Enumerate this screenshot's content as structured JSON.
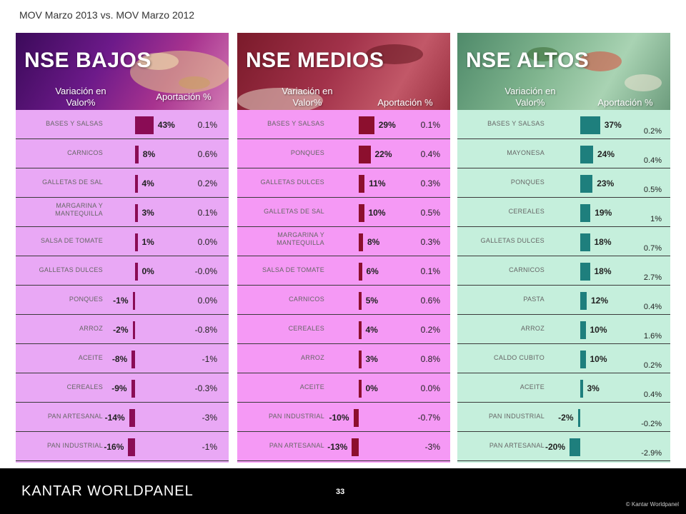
{
  "subtitle": "MOV Marzo 2013  vs. MOV Marzo 2012",
  "colors": {
    "bajos_bg": "#e9a8f5",
    "medios_bg": "#f599f5",
    "altos_bg": "#c5efdc",
    "bar_bajos": "#8a0c55",
    "bar_medios": "#8c0f2e",
    "bar_altos": "#1e7f7d"
  },
  "panels": [
    {
      "title": "NSE BAJOS",
      "col_variacion": "Variación en Valor%",
      "col_aportacion": "Aportación %",
      "rows": [
        {
          "cat": "BASES Y SALSAS",
          "var": 43,
          "var_label": "43%",
          "apo": "0.1%"
        },
        {
          "cat": "CARNICOS",
          "var": 8,
          "var_label": "8%",
          "apo": "0.6%"
        },
        {
          "cat": "GALLETAS DE SAL",
          "var": 4,
          "var_label": "4%",
          "apo": "0.2%"
        },
        {
          "cat": "MARGARINA Y MANTEQUILLA",
          "var": 3,
          "var_label": "3%",
          "apo": "0.1%"
        },
        {
          "cat": "SALSA DE TOMATE",
          "var": 1,
          "var_label": "1%",
          "apo": "0.0%"
        },
        {
          "cat": "GALLETAS DULCES",
          "var": 0,
          "var_label": "0%",
          "apo": "-0.0%"
        },
        {
          "cat": "PONQUES",
          "var": -1,
          "var_label": "-1%",
          "apo": "0.0%"
        },
        {
          "cat": "ARROZ",
          "var": -2,
          "var_label": "-2%",
          "apo": "-0.8%"
        },
        {
          "cat": "ACEITE",
          "var": -8,
          "var_label": "-8%",
          "apo": "-1%"
        },
        {
          "cat": "CEREALES",
          "var": -9,
          "var_label": "-9%",
          "apo": "-0.3%"
        },
        {
          "cat": "PAN ARTESANAL",
          "var": -14,
          "var_label": "-14%",
          "apo": "-3%"
        },
        {
          "cat": "PAN INDUSTRIAL",
          "var": -16,
          "var_label": "-16%",
          "apo": "-1%"
        }
      ]
    },
    {
      "title": "NSE MEDIOS",
      "col_variacion": "Variación en Valor%",
      "col_aportacion": "Aportación %",
      "rows": [
        {
          "cat": "BASES Y SALSAS",
          "var": 29,
          "var_label": "29%",
          "apo": "0.1%"
        },
        {
          "cat": "PONQUES",
          "var": 22,
          "var_label": "22%",
          "apo": "0.4%"
        },
        {
          "cat": "GALLETAS DULCES",
          "var": 11,
          "var_label": "11%",
          "apo": "0.3%"
        },
        {
          "cat": "GALLETAS DE SAL",
          "var": 10,
          "var_label": "10%",
          "apo": "0.5%"
        },
        {
          "cat": "MARGARINA Y MANTEQUILLA",
          "var": 8,
          "var_label": "8%",
          "apo": "0.3%"
        },
        {
          "cat": "SALSA DE TOMATE",
          "var": 6,
          "var_label": "6%",
          "apo": "0.1%"
        },
        {
          "cat": "CARNICOS",
          "var": 5,
          "var_label": "5%",
          "apo": "0.6%"
        },
        {
          "cat": "CEREALES",
          "var": 4,
          "var_label": "4%",
          "apo": "0.2%"
        },
        {
          "cat": "ARROZ",
          "var": 3,
          "var_label": "3%",
          "apo": "0.8%"
        },
        {
          "cat": "ACEITE",
          "var": 0,
          "var_label": "0%",
          "apo": "0.0%"
        },
        {
          "cat": "PAN INDUSTRIAL",
          "var": -10,
          "var_label": "-10%",
          "apo": "-0.7%"
        },
        {
          "cat": "PAN ARTESANAL",
          "var": -13,
          "var_label": "-13%",
          "apo": "-3%"
        }
      ]
    },
    {
      "title": "NSE ALTOS",
      "col_variacion": "Variación en Valor%",
      "col_aportacion": "Aportación %",
      "rows": [
        {
          "cat": "BASES Y SALSAS",
          "var": 37,
          "var_label": "37%",
          "apo": "0.2%"
        },
        {
          "cat": "MAYONESA",
          "var": 24,
          "var_label": "24%",
          "apo": "0.4%"
        },
        {
          "cat": "PONQUES",
          "var": 23,
          "var_label": "23%",
          "apo": "0.5%"
        },
        {
          "cat": "CEREALES",
          "var": 19,
          "var_label": "19%",
          "apo": "1%"
        },
        {
          "cat": "GALLETAS DULCES",
          "var": 18,
          "var_label": "18%",
          "apo": "0.7%"
        },
        {
          "cat": "CARNICOS",
          "var": 18,
          "var_label": "18%",
          "apo": "2.7%"
        },
        {
          "cat": "PASTA",
          "var": 12,
          "var_label": "12%",
          "apo": "0.4%"
        },
        {
          "cat": "ARROZ",
          "var": 10,
          "var_label": "10%",
          "apo": "1.6%"
        },
        {
          "cat": "CALDO CUBITO",
          "var": 10,
          "var_label": "10%",
          "apo": "0.2%"
        },
        {
          "cat": "ACEITE",
          "var": 3,
          "var_label": "3%",
          "apo": "0.4%"
        },
        {
          "cat": "PAN INDUSTRIAL",
          "var": -2,
          "var_label": "-2%",
          "apo": "-0.2%"
        },
        {
          "cat": "PAN ARTESANAL",
          "var": -20,
          "var_label": "-20%",
          "apo": "-2.9%"
        }
      ]
    }
  ],
  "footer": {
    "logo": "KANTAR WORLDPANEL",
    "page": "33",
    "copyright": "© Kantar Worldpanel"
  },
  "chart_data": [
    {
      "type": "bar",
      "title": "NSE BAJOS",
      "series": [
        {
          "name": "Variación en Valor%",
          "values": [
            43,
            8,
            4,
            3,
            1,
            0,
            -1,
            -2,
            -8,
            -9,
            -14,
            -16
          ]
        },
        {
          "name": "Aportación %",
          "values": [
            0.1,
            0.6,
            0.2,
            0.1,
            0.0,
            -0.0,
            0.0,
            -0.8,
            -1,
            -0.3,
            -3,
            -1
          ]
        }
      ],
      "categories": [
        "BASES Y SALSAS",
        "CARNICOS",
        "GALLETAS DE SAL",
        "MARGARINA Y MANTEQUILLA",
        "SALSA DE TOMATE",
        "GALLETAS DULCES",
        "PONQUES",
        "ARROZ",
        "ACEITE",
        "CEREALES",
        "PAN ARTESANAL",
        "PAN INDUSTRIAL"
      ]
    },
    {
      "type": "bar",
      "title": "NSE MEDIOS",
      "series": [
        {
          "name": "Variación en Valor%",
          "values": [
            29,
            22,
            11,
            10,
            8,
            6,
            5,
            4,
            3,
            0,
            -10,
            -13
          ]
        },
        {
          "name": "Aportación %",
          "values": [
            0.1,
            0.4,
            0.3,
            0.5,
            0.3,
            0.1,
            0.6,
            0.2,
            0.8,
            0.0,
            -0.7,
            -3
          ]
        }
      ],
      "categories": [
        "BASES Y SALSAS",
        "PONQUES",
        "GALLETAS DULCES",
        "GALLETAS DE SAL",
        "MARGARINA Y MANTEQUILLA",
        "SALSA DE TOMATE",
        "CARNICOS",
        "CEREALES",
        "ARROZ",
        "ACEITE",
        "PAN INDUSTRIAL",
        "PAN ARTESANAL"
      ]
    },
    {
      "type": "bar",
      "title": "NSE ALTOS",
      "series": [
        {
          "name": "Variación en Valor%",
          "values": [
            37,
            24,
            23,
            19,
            18,
            18,
            12,
            10,
            10,
            3,
            -2,
            -20
          ]
        },
        {
          "name": "Aportación %",
          "values": [
            0.2,
            0.4,
            0.5,
            1,
            0.7,
            2.7,
            0.4,
            1.6,
            0.2,
            0.4,
            -0.2,
            -2.9
          ]
        }
      ],
      "categories": [
        "BASES Y SALSAS",
        "MAYONESA",
        "PONQUES",
        "CEREALES",
        "GALLETAS DULCES",
        "CARNICOS",
        "PASTA",
        "ARROZ",
        "CALDO CUBITO",
        "ACEITE",
        "PAN INDUSTRIAL",
        "PAN ARTESANAL"
      ]
    }
  ]
}
